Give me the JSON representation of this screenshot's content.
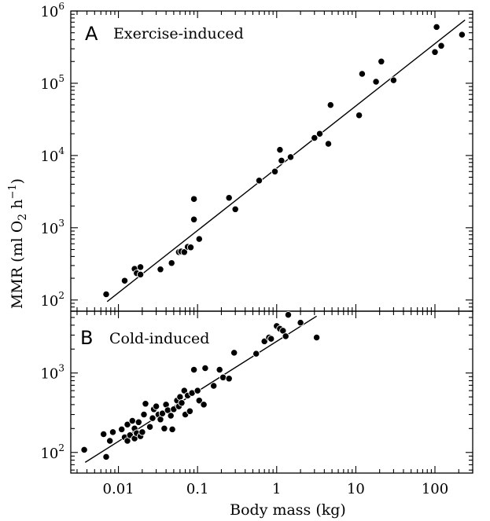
{
  "chart_data": [
    {
      "type": "scatter",
      "panel_letter": "A",
      "panel_title": "Exercise-induced",
      "ylabel": "MMR (ml O2 h−1)",
      "xlabel": "Body mass (kg)",
      "xscale": "log",
      "yscale": "log",
      "xlim": [
        0.0025,
        300
      ],
      "ylim": [
        70,
        1000000
      ],
      "y_tick_labels": [
        {
          "base": "10",
          "exp": "2",
          "value": 100
        },
        {
          "base": "10",
          "exp": "3",
          "value": 1000
        },
        {
          "base": "10",
          "exp": "4",
          "value": 10000
        },
        {
          "base": "10",
          "exp": "5",
          "value": 100000
        },
        {
          "base": "10",
          "exp": "6",
          "value": 1000000
        }
      ],
      "fit_line": {
        "x": [
          0.0072,
          240
        ],
        "y": [
          95,
          750000
        ]
      },
      "points": [
        {
          "x": 0.007,
          "y": 120
        },
        {
          "x": 0.012,
          "y": 185
        },
        {
          "x": 0.016,
          "y": 270
        },
        {
          "x": 0.017,
          "y": 235
        },
        {
          "x": 0.019,
          "y": 225
        },
        {
          "x": 0.019,
          "y": 285
        },
        {
          "x": 0.034,
          "y": 265
        },
        {
          "x": 0.047,
          "y": 325
        },
        {
          "x": 0.058,
          "y": 460
        },
        {
          "x": 0.062,
          "y": 470
        },
        {
          "x": 0.068,
          "y": 460
        },
        {
          "x": 0.075,
          "y": 545
        },
        {
          "x": 0.082,
          "y": 535
        },
        {
          "x": 0.09,
          "y": 1300
        },
        {
          "x": 0.09,
          "y": 2500
        },
        {
          "x": 0.105,
          "y": 700
        },
        {
          "x": 0.25,
          "y": 2600
        },
        {
          "x": 0.3,
          "y": 1800
        },
        {
          "x": 0.6,
          "y": 4500
        },
        {
          "x": 0.95,
          "y": 6000
        },
        {
          "x": 1.1,
          "y": 12000
        },
        {
          "x": 1.15,
          "y": 8500
        },
        {
          "x": 1.5,
          "y": 9500
        },
        {
          "x": 3.0,
          "y": 17500
        },
        {
          "x": 3.5,
          "y": 20000
        },
        {
          "x": 4.5,
          "y": 14500
        },
        {
          "x": 4.8,
          "y": 50000
        },
        {
          "x": 11,
          "y": 36000
        },
        {
          "x": 12,
          "y": 135000
        },
        {
          "x": 18,
          "y": 105000
        },
        {
          "x": 21,
          "y": 200000
        },
        {
          "x": 30,
          "y": 110000
        },
        {
          "x": 100,
          "y": 270000
        },
        {
          "x": 105,
          "y": 600000
        },
        {
          "x": 120,
          "y": 330000
        },
        {
          "x": 220,
          "y": 470000
        }
      ]
    },
    {
      "type": "scatter",
      "panel_letter": "B",
      "panel_title": "Cold-induced",
      "xlabel": "Body mass (kg)",
      "xscale": "log",
      "yscale": "log",
      "xlim": [
        0.0025,
        300
      ],
      "ylim": [
        55,
        6000
      ],
      "x_tick_labels": [
        {
          "label": "0.01",
          "value": 0.01
        },
        {
          "label": "0.1",
          "value": 0.1
        },
        {
          "label": "1",
          "value": 1
        },
        {
          "label": "10",
          "value": 10
        },
        {
          "label": "100",
          "value": 100
        }
      ],
      "y_tick_labels": [
        {
          "base": "10",
          "exp": "2",
          "value": 100
        },
        {
          "base": "10",
          "exp": "3",
          "value": 1000
        }
      ],
      "fit_line": {
        "x": [
          0.0038,
          3.2
        ],
        "y": [
          75,
          5200
        ]
      },
      "points": [
        {
          "x": 0.0037,
          "y": 108
        },
        {
          "x": 0.0065,
          "y": 170
        },
        {
          "x": 0.007,
          "y": 88
        },
        {
          "x": 0.0078,
          "y": 140
        },
        {
          "x": 0.0085,
          "y": 180
        },
        {
          "x": 0.011,
          "y": 195
        },
        {
          "x": 0.012,
          "y": 155
        },
        {
          "x": 0.013,
          "y": 140
        },
        {
          "x": 0.013,
          "y": 225
        },
        {
          "x": 0.014,
          "y": 165
        },
        {
          "x": 0.015,
          "y": 250
        },
        {
          "x": 0.016,
          "y": 150
        },
        {
          "x": 0.016,
          "y": 200
        },
        {
          "x": 0.017,
          "y": 175
        },
        {
          "x": 0.018,
          "y": 240
        },
        {
          "x": 0.019,
          "y": 160
        },
        {
          "x": 0.02,
          "y": 180
        },
        {
          "x": 0.021,
          "y": 300
        },
        {
          "x": 0.022,
          "y": 410
        },
        {
          "x": 0.025,
          "y": 210
        },
        {
          "x": 0.027,
          "y": 270
        },
        {
          "x": 0.028,
          "y": 350
        },
        {
          "x": 0.03,
          "y": 380
        },
        {
          "x": 0.032,
          "y": 300
        },
        {
          "x": 0.034,
          "y": 260
        },
        {
          "x": 0.036,
          "y": 310
        },
        {
          "x": 0.038,
          "y": 200
        },
        {
          "x": 0.04,
          "y": 400
        },
        {
          "x": 0.042,
          "y": 340
        },
        {
          "x": 0.046,
          "y": 290
        },
        {
          "x": 0.048,
          "y": 195
        },
        {
          "x": 0.05,
          "y": 350
        },
        {
          "x": 0.055,
          "y": 450
        },
        {
          "x": 0.058,
          "y": 380
        },
        {
          "x": 0.06,
          "y": 500
        },
        {
          "x": 0.063,
          "y": 420
        },
        {
          "x": 0.068,
          "y": 600
        },
        {
          "x": 0.07,
          "y": 300
        },
        {
          "x": 0.075,
          "y": 520
        },
        {
          "x": 0.08,
          "y": 330
        },
        {
          "x": 0.085,
          "y": 560
        },
        {
          "x": 0.09,
          "y": 1100
        },
        {
          "x": 0.1,
          "y": 600
        },
        {
          "x": 0.105,
          "y": 450
        },
        {
          "x": 0.12,
          "y": 400
        },
        {
          "x": 0.125,
          "y": 1150
        },
        {
          "x": 0.16,
          "y": 690
        },
        {
          "x": 0.19,
          "y": 1100
        },
        {
          "x": 0.21,
          "y": 880
        },
        {
          "x": 0.25,
          "y": 850
        },
        {
          "x": 0.29,
          "y": 1800
        },
        {
          "x": 0.55,
          "y": 1750
        },
        {
          "x": 0.7,
          "y": 2500
        },
        {
          "x": 0.8,
          "y": 2800
        },
        {
          "x": 0.85,
          "y": 2700
        },
        {
          "x": 1.0,
          "y": 3900
        },
        {
          "x": 1.1,
          "y": 3600
        },
        {
          "x": 1.2,
          "y": 3400
        },
        {
          "x": 1.3,
          "y": 2900
        },
        {
          "x": 1.4,
          "y": 5400
        },
        {
          "x": 2.0,
          "y": 4300
        },
        {
          "x": 3.2,
          "y": 2800
        }
      ]
    }
  ]
}
